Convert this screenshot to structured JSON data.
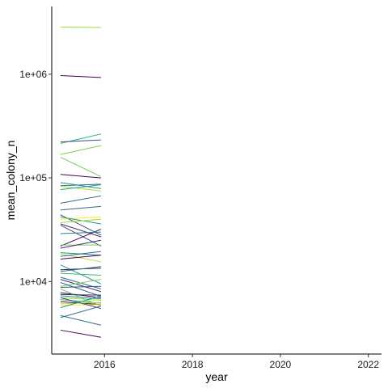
{
  "chart_data": {
    "type": "line",
    "title": "",
    "xlabel": "year",
    "ylabel": "mean_colony_n",
    "xlim": [
      2014.8,
      2022.3
    ],
    "ylim": [
      2000,
      4500000
    ],
    "y_scale": "log",
    "x_ticks": [
      2016,
      2018,
      2020,
      2022
    ],
    "x_tick_labels": [
      "2016",
      "2018",
      "2020",
      "2022"
    ],
    "y_ticks": [
      10000,
      100000,
      1000000
    ],
    "y_tick_labels": [
      "1e+04",
      "1e+05",
      "1e+06"
    ],
    "grid": false,
    "legend": "none",
    "x": [
      2015,
      2015.92
    ],
    "series": [
      {
        "color": "#9fda3a",
        "values": [
          2850000,
          2820000
        ]
      },
      {
        "color": "#440154",
        "values": [
          970000,
          930000
        ]
      },
      {
        "color": "#35b779",
        "values": [
          215000,
          265000
        ]
      },
      {
        "color": "#3b528b",
        "values": [
          222000,
          232000
        ]
      },
      {
        "color": "#7ad151",
        "values": [
          168000,
          205000
        ]
      },
      {
        "color": "#6ece58",
        "values": [
          158000,
          103000
        ]
      },
      {
        "color": "#440154",
        "values": [
          108000,
          100000
        ]
      },
      {
        "color": "#21918c",
        "values": [
          90000,
          79000
        ]
      },
      {
        "color": "#31688e",
        "values": [
          84000,
          87000
        ]
      },
      {
        "color": "#b5de2b",
        "values": [
          83000,
          75000
        ]
      },
      {
        "color": "#1f9e89",
        "values": [
          77000,
          86000
        ]
      },
      {
        "color": "#2c728e",
        "values": [
          57000,
          67000
        ]
      },
      {
        "color": "#31688e",
        "values": [
          49000,
          53000
        ]
      },
      {
        "color": "#3b528b",
        "values": [
          44000,
          28000
        ]
      },
      {
        "color": "#fde725",
        "values": [
          40000,
          42000
        ]
      },
      {
        "color": "#1f9e89",
        "values": [
          42000,
          36000
        ]
      },
      {
        "color": "#9fda3a",
        "values": [
          37000,
          40000
        ]
      },
      {
        "color": "#472d7b",
        "values": [
          36000,
          27000
        ]
      },
      {
        "color": "#3b528b",
        "values": [
          35000,
          22000
        ]
      },
      {
        "color": "#440154",
        "values": [
          22000,
          32000
        ]
      },
      {
        "color": "#26828e",
        "values": [
          29000,
          30000
        ]
      },
      {
        "color": "#6ece58",
        "values": [
          22500,
          22500
        ]
      },
      {
        "color": "#482878",
        "values": [
          21000,
          25000
        ]
      },
      {
        "color": "#21918c",
        "values": [
          19000,
          18000
        ]
      },
      {
        "color": "#b5de2b",
        "values": [
          18500,
          15500
        ]
      },
      {
        "color": "#31688e",
        "values": [
          17500,
          19500
        ]
      },
      {
        "color": "#440154",
        "values": [
          16500,
          18000
        ]
      },
      {
        "color": "#1f9e89",
        "values": [
          14500,
          9500
        ]
      },
      {
        "color": "#440154",
        "values": [
          13000,
          13500
        ]
      },
      {
        "color": "#26828e",
        "values": [
          12500,
          14000
        ]
      },
      {
        "color": "#35b779",
        "values": [
          12000,
          11500
        ]
      },
      {
        "color": "#31688e",
        "values": [
          11000,
          8500
        ]
      },
      {
        "color": "#472d7b",
        "values": [
          10500,
          8000
        ]
      },
      {
        "color": "#7ad151",
        "values": [
          9000,
          10500
        ]
      },
      {
        "color": "#2c728e",
        "values": [
          9800,
          7200
        ]
      },
      {
        "color": "#3b528b",
        "values": [
          8800,
          9000
        ]
      },
      {
        "color": "#440154",
        "values": [
          7800,
          7000
        ]
      },
      {
        "color": "#6ece58",
        "values": [
          8500,
          5800
        ]
      },
      {
        "color": "#21918c",
        "values": [
          7300,
          6800
        ]
      },
      {
        "color": "#9fda3a",
        "values": [
          7000,
          6600
        ]
      },
      {
        "color": "#482878",
        "values": [
          7500,
          7400
        ]
      },
      {
        "color": "#35b779",
        "values": [
          6700,
          6200
        ]
      },
      {
        "color": "#440154",
        "values": [
          6400,
          6000
        ]
      },
      {
        "color": "#fde725",
        "values": [
          5900,
          6000
        ]
      },
      {
        "color": "#b5de2b",
        "values": [
          6100,
          6300
        ]
      },
      {
        "color": "#1f9e89",
        "values": [
          5600,
          7300
        ]
      },
      {
        "color": "#3b528b",
        "values": [
          7000,
          5500
        ]
      },
      {
        "color": "#2c728e",
        "values": [
          4700,
          3800
        ]
      },
      {
        "color": "#31688e",
        "values": [
          4500,
          5800
        ]
      },
      {
        "color": "#440154",
        "values": [
          3400,
          2900
        ]
      }
    ]
  }
}
